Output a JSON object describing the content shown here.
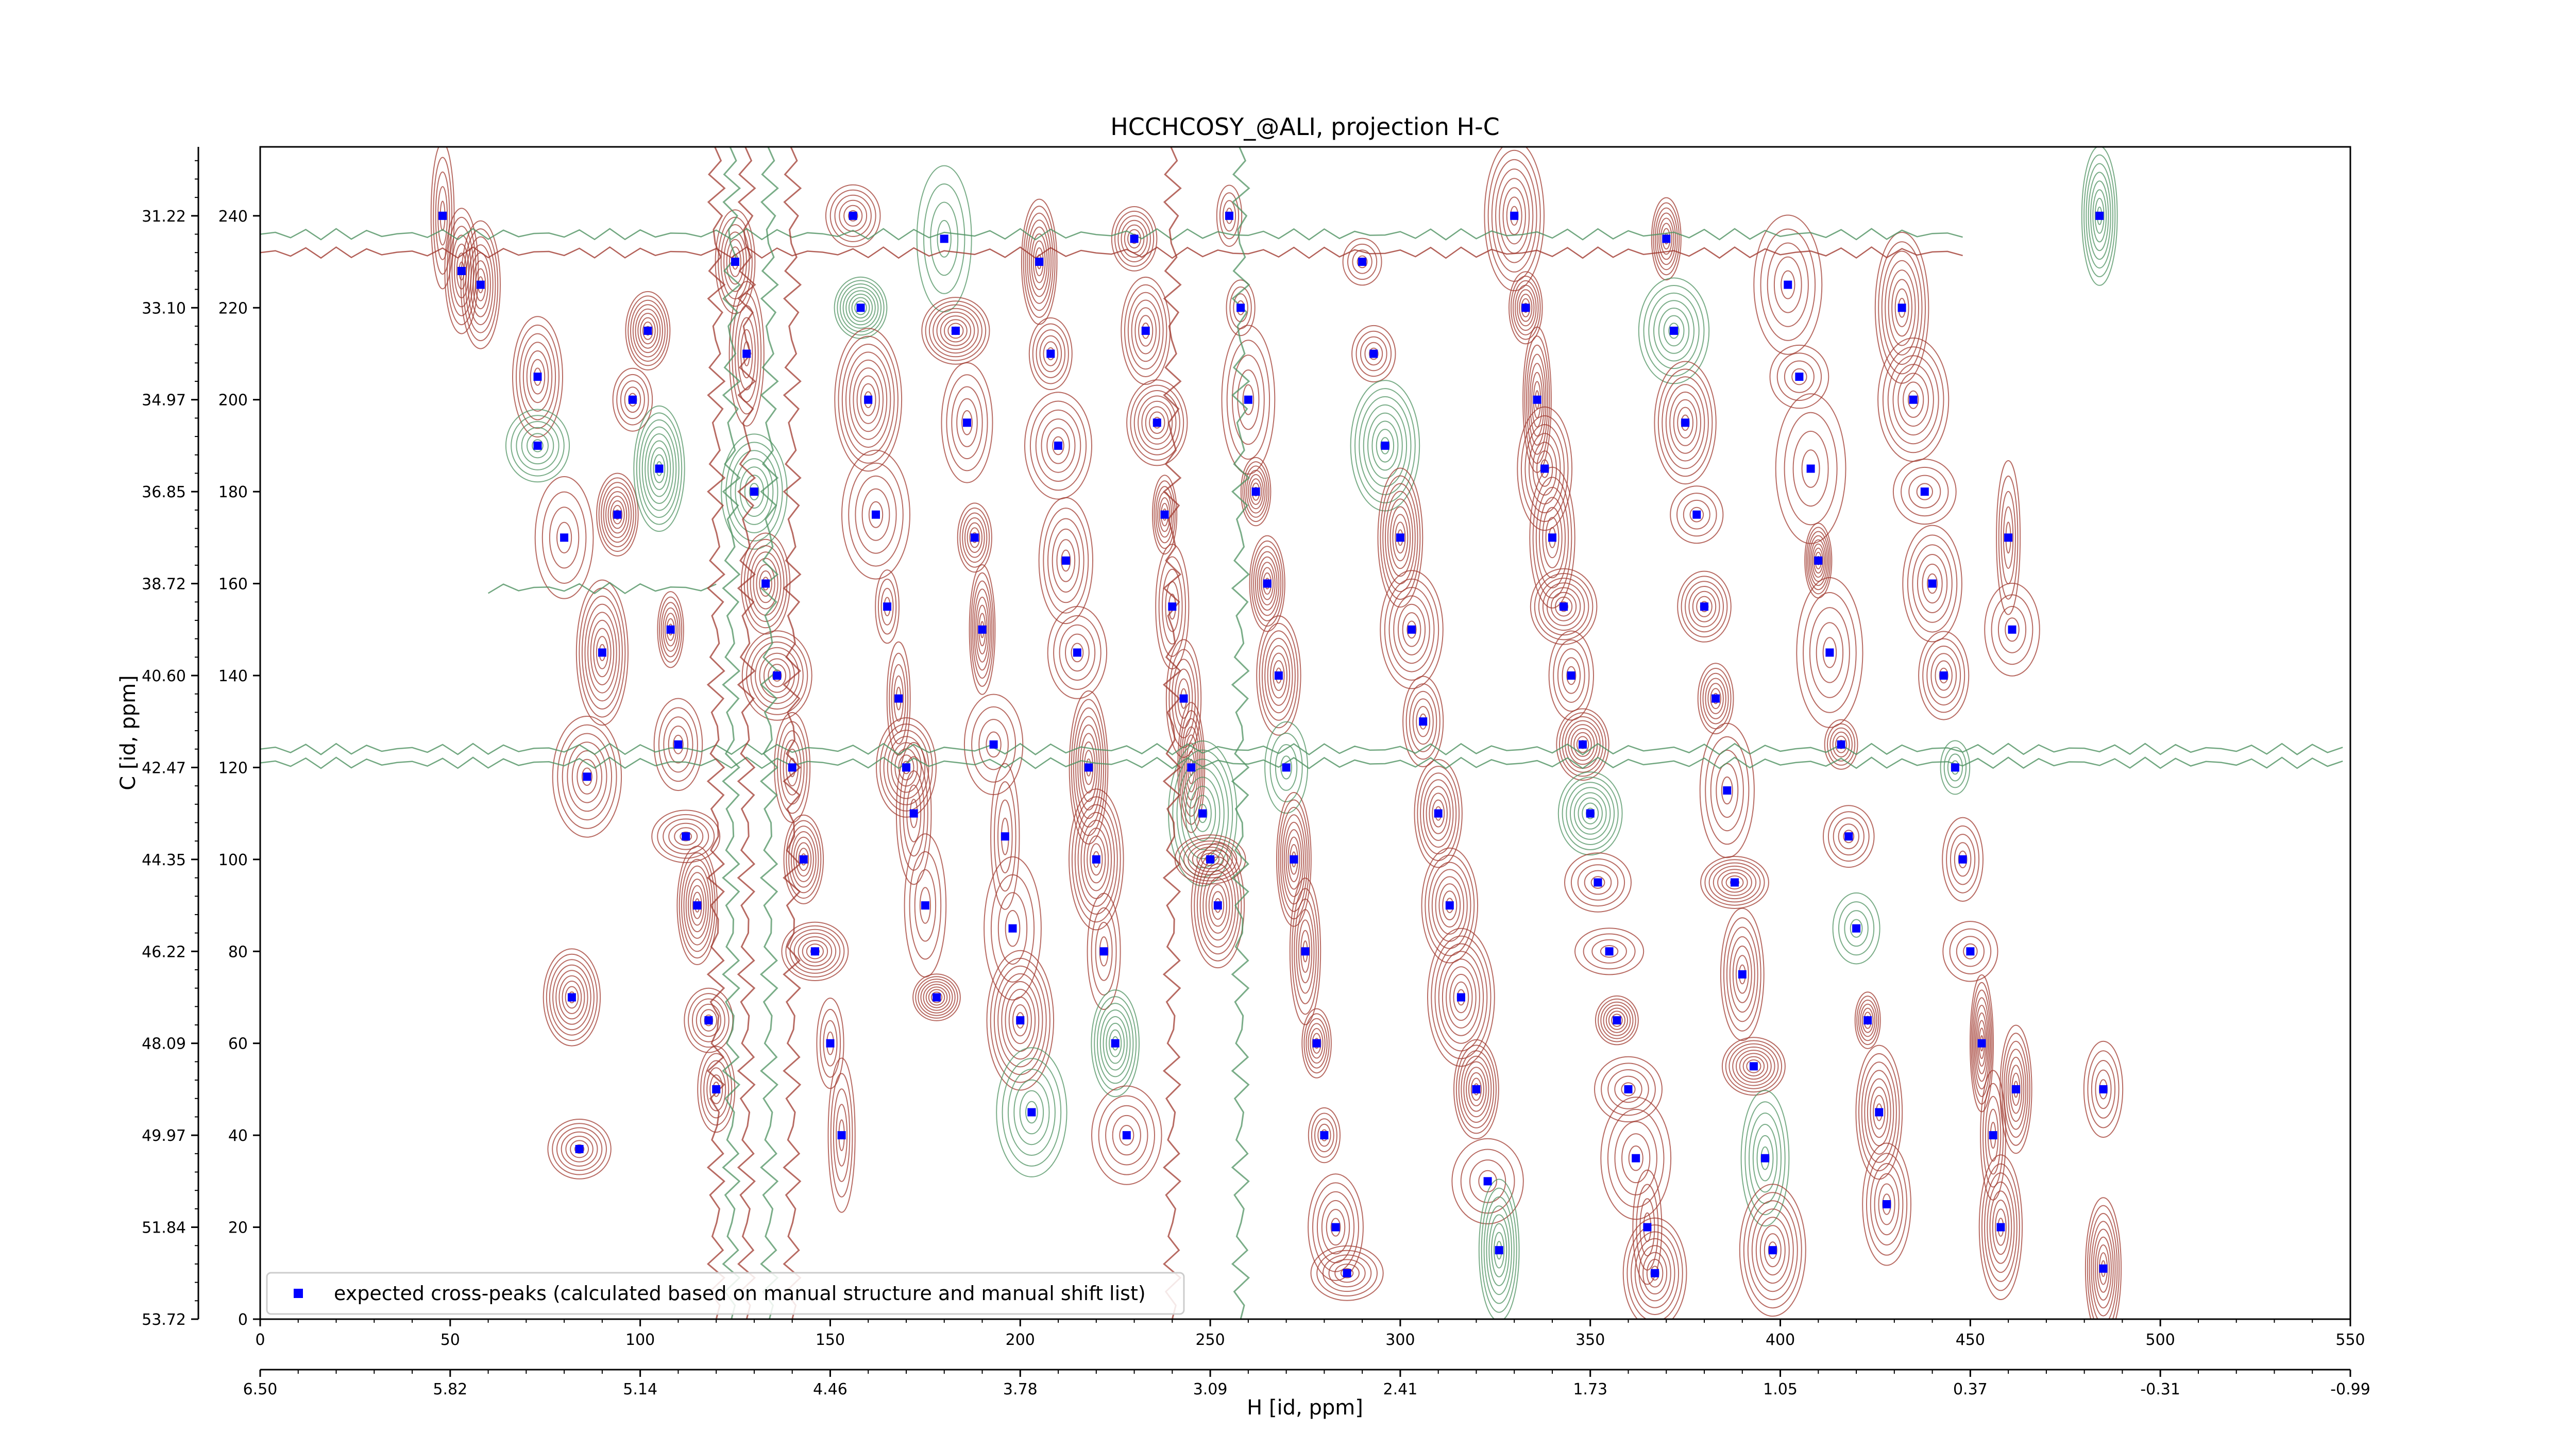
{
  "chart_data": {
    "type": "scatter",
    "title": "HCCHCOSY_@ALI, projection H-C",
    "xlabel": "H [id, ppm]",
    "ylabel": "C [id, ppm]",
    "x_index_range": [
      0,
      550
    ],
    "y_index_range": [
      0,
      255
    ],
    "x_index_ticks": [
      0,
      50,
      100,
      150,
      200,
      250,
      300,
      350,
      400,
      450,
      500,
      550
    ],
    "x_ppm_tick_labels": [
      "6.50",
      "5.82",
      "5.14",
      "4.46",
      "3.78",
      "3.09",
      "2.41",
      "1.73",
      "1.05",
      "0.37",
      "-0.31",
      "-0.99"
    ],
    "y_index_ticks": [
      0,
      20,
      40,
      60,
      80,
      100,
      120,
      140,
      160,
      180,
      200,
      220,
      240
    ],
    "y_ppm_tick_labels": [
      "53.72",
      "51.84",
      "49.97",
      "48.09",
      "46.22",
      "44.35",
      "42.47",
      "40.60",
      "38.72",
      "36.85",
      "34.97",
      "33.10",
      "31.22"
    ],
    "grid": false,
    "legend": {
      "placement": "lower-left",
      "entries": [
        "expected cross-peaks (calculated based on manual structure and manual shift list)"
      ]
    },
    "contour_colors": {
      "positive": "#a0392f",
      "negative": "#4e9160"
    },
    "series": [
      {
        "name": "expected cross-peaks (calculated based on manual structure and manual shift list)",
        "color": "#0000ff",
        "marker": "square",
        "points": [
          [
            48,
            240
          ],
          [
            53,
            228
          ],
          [
            58,
            225
          ],
          [
            73,
            205
          ],
          [
            73,
            190
          ],
          [
            80,
            170
          ],
          [
            82,
            70
          ],
          [
            84,
            37
          ],
          [
            86,
            118
          ],
          [
            90,
            145
          ],
          [
            94,
            175
          ],
          [
            98,
            200
          ],
          [
            102,
            215
          ],
          [
            105,
            185
          ],
          [
            108,
            150
          ],
          [
            110,
            125
          ],
          [
            112,
            105
          ],
          [
            115,
            90
          ],
          [
            118,
            65
          ],
          [
            120,
            50
          ],
          [
            125,
            230
          ],
          [
            128,
            210
          ],
          [
            130,
            180
          ],
          [
            133,
            160
          ],
          [
            136,
            140
          ],
          [
            140,
            120
          ],
          [
            143,
            100
          ],
          [
            146,
            80
          ],
          [
            150,
            60
          ],
          [
            153,
            40
          ],
          [
            156,
            240
          ],
          [
            158,
            220
          ],
          [
            160,
            200
          ],
          [
            162,
            175
          ],
          [
            165,
            155
          ],
          [
            168,
            135
          ],
          [
            170,
            120
          ],
          [
            172,
            110
          ],
          [
            175,
            90
          ],
          [
            178,
            70
          ],
          [
            180,
            235
          ],
          [
            183,
            215
          ],
          [
            186,
            195
          ],
          [
            188,
            170
          ],
          [
            190,
            150
          ],
          [
            193,
            125
          ],
          [
            196,
            105
          ],
          [
            198,
            85
          ],
          [
            200,
            65
          ],
          [
            203,
            45
          ],
          [
            205,
            230
          ],
          [
            208,
            210
          ],
          [
            210,
            190
          ],
          [
            212,
            165
          ],
          [
            215,
            145
          ],
          [
            218,
            120
          ],
          [
            220,
            100
          ],
          [
            222,
            80
          ],
          [
            225,
            60
          ],
          [
            228,
            40
          ],
          [
            230,
            235
          ],
          [
            233,
            215
          ],
          [
            236,
            195
          ],
          [
            238,
            175
          ],
          [
            240,
            155
          ],
          [
            243,
            135
          ],
          [
            245,
            120
          ],
          [
            248,
            110
          ],
          [
            250,
            100
          ],
          [
            252,
            90
          ],
          [
            255,
            240
          ],
          [
            258,
            220
          ],
          [
            260,
            200
          ],
          [
            262,
            180
          ],
          [
            265,
            160
          ],
          [
            268,
            140
          ],
          [
            270,
            120
          ],
          [
            272,
            100
          ],
          [
            275,
            80
          ],
          [
            278,
            60
          ],
          [
            280,
            40
          ],
          [
            283,
            20
          ],
          [
            286,
            10
          ],
          [
            290,
            230
          ],
          [
            293,
            210
          ],
          [
            296,
            190
          ],
          [
            300,
            170
          ],
          [
            303,
            150
          ],
          [
            306,
            130
          ],
          [
            310,
            110
          ],
          [
            313,
            90
          ],
          [
            316,
            70
          ],
          [
            320,
            50
          ],
          [
            323,
            30
          ],
          [
            326,
            15
          ],
          [
            330,
            240
          ],
          [
            333,
            220
          ],
          [
            336,
            200
          ],
          [
            338,
            185
          ],
          [
            340,
            170
          ],
          [
            343,
            155
          ],
          [
            345,
            140
          ],
          [
            348,
            125
          ],
          [
            350,
            110
          ],
          [
            352,
            95
          ],
          [
            355,
            80
          ],
          [
            357,
            65
          ],
          [
            360,
            50
          ],
          [
            362,
            35
          ],
          [
            365,
            20
          ],
          [
            367,
            10
          ],
          [
            370,
            235
          ],
          [
            372,
            215
          ],
          [
            375,
            195
          ],
          [
            378,
            175
          ],
          [
            380,
            155
          ],
          [
            383,
            135
          ],
          [
            386,
            115
          ],
          [
            388,
            95
          ],
          [
            390,
            75
          ],
          [
            393,
            55
          ],
          [
            396,
            35
          ],
          [
            398,
            15
          ],
          [
            402,
            225
          ],
          [
            405,
            205
          ],
          [
            408,
            185
          ],
          [
            410,
            165
          ],
          [
            413,
            145
          ],
          [
            416,
            125
          ],
          [
            418,
            105
          ],
          [
            420,
            85
          ],
          [
            423,
            65
          ],
          [
            426,
            45
          ],
          [
            428,
            25
          ],
          [
            432,
            220
          ],
          [
            435,
            200
          ],
          [
            438,
            180
          ],
          [
            440,
            160
          ],
          [
            443,
            140
          ],
          [
            446,
            120
          ],
          [
            448,
            100
          ],
          [
            450,
            80
          ],
          [
            453,
            60
          ],
          [
            456,
            40
          ],
          [
            458,
            20
          ],
          [
            460,
            170
          ],
          [
            461,
            150
          ],
          [
            462,
            50
          ],
          [
            484,
            240
          ],
          [
            485,
            50
          ],
          [
            485,
            11
          ]
        ]
      }
    ]
  }
}
